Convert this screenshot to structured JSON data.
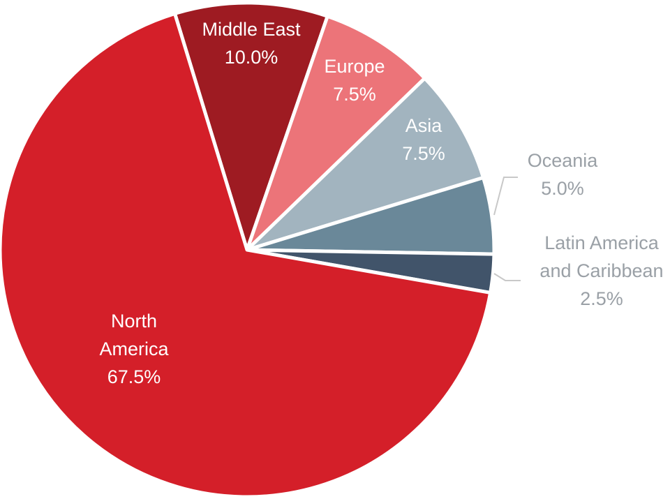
{
  "chart_data": {
    "type": "pie",
    "title": "",
    "start_angle_deg": 115,
    "direction": "clockwise",
    "slices": [
      {
        "key": "middle-east",
        "label_lines": [
          "Middle East"
        ],
        "value": 10.0,
        "value_label": "10.0%",
        "color": "#9e1b22",
        "label_placement": "inside"
      },
      {
        "key": "europe",
        "label_lines": [
          "Europe"
        ],
        "value": 7.5,
        "value_label": "7.5%",
        "color": "#ec7479",
        "label_placement": "inside"
      },
      {
        "key": "asia",
        "label_lines": [
          "Asia"
        ],
        "value": 7.5,
        "value_label": "7.5%",
        "color": "#a2b4bf",
        "label_placement": "inside"
      },
      {
        "key": "oceania",
        "label_lines": [
          "Oceania"
        ],
        "value": 5.0,
        "value_label": "5.0%",
        "color": "#6a8899",
        "label_placement": "outside"
      },
      {
        "key": "latin-america-and-caribbean",
        "label_lines": [
          "Latin America",
          "and Caribbean"
        ],
        "value": 2.5,
        "value_label": "2.5%",
        "color": "#41546a",
        "label_placement": "outside"
      },
      {
        "key": "north-america",
        "label_lines": [
          "North",
          "America"
        ],
        "value": 67.5,
        "value_label": "67.5%",
        "color": "#d41f29",
        "label_placement": "inside"
      }
    ]
  }
}
